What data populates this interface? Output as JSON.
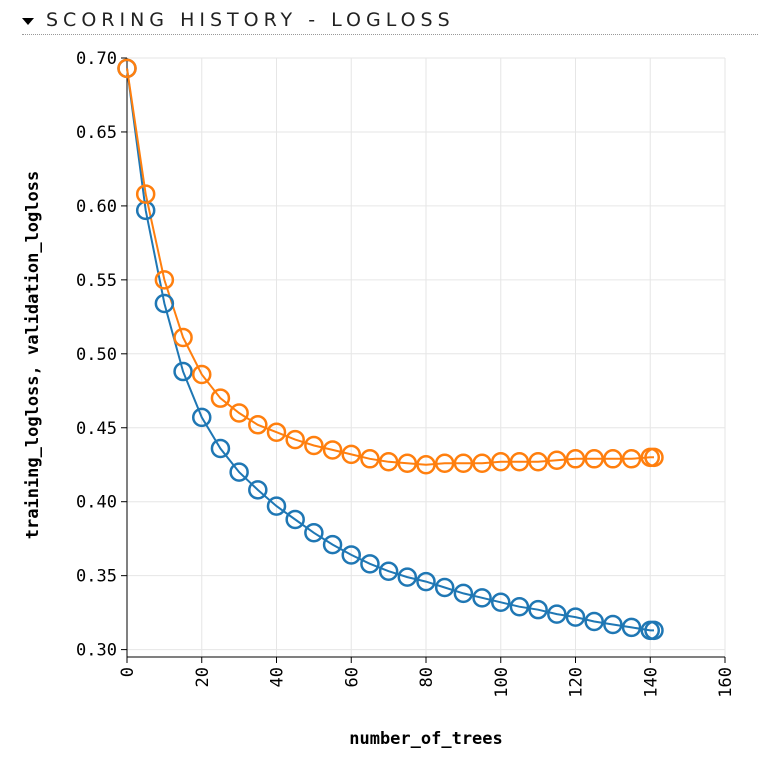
{
  "section": {
    "title": "SCORING HISTORY - LOGLOSS",
    "caret_icon": "caret-down-icon"
  },
  "chart_data": {
    "type": "line",
    "xlabel": "number_of_trees",
    "ylabel": "training_logloss, validation_logloss",
    "xlim": [
      0,
      160
    ],
    "ylim": [
      0.295,
      0.7
    ],
    "xticks": [
      "0",
      "20",
      "40",
      "60",
      "80",
      "100",
      "120",
      "140",
      "160"
    ],
    "yticks": [
      "0.30",
      "0.35",
      "0.40",
      "0.45",
      "0.50",
      "0.55",
      "0.60",
      "0.65",
      "0.70"
    ],
    "grid": true,
    "x": [
      0,
      5,
      10,
      15,
      20,
      25,
      30,
      35,
      40,
      45,
      50,
      55,
      60,
      65,
      70,
      75,
      80,
      85,
      90,
      95,
      100,
      105,
      110,
      115,
      120,
      125,
      130,
      135,
      140,
      141
    ],
    "series": [
      {
        "color": "#1f77b4",
        "values": [
          0.693,
          0.597,
          0.534,
          0.488,
          0.457,
          0.436,
          0.42,
          0.408,
          0.397,
          0.388,
          0.379,
          0.371,
          0.364,
          0.358,
          0.353,
          0.349,
          0.346,
          0.342,
          0.338,
          0.335,
          0.332,
          0.329,
          0.327,
          0.324,
          0.322,
          0.319,
          0.317,
          0.315,
          0.313,
          0.313
        ]
      },
      {
        "color": "#ff7f0e",
        "values": [
          0.693,
          0.608,
          0.55,
          0.511,
          0.486,
          0.47,
          0.46,
          0.452,
          0.447,
          0.442,
          0.438,
          0.435,
          0.432,
          0.429,
          0.427,
          0.426,
          0.425,
          0.426,
          0.426,
          0.426,
          0.427,
          0.427,
          0.427,
          0.428,
          0.429,
          0.429,
          0.429,
          0.429,
          0.43,
          0.43
        ]
      }
    ]
  }
}
